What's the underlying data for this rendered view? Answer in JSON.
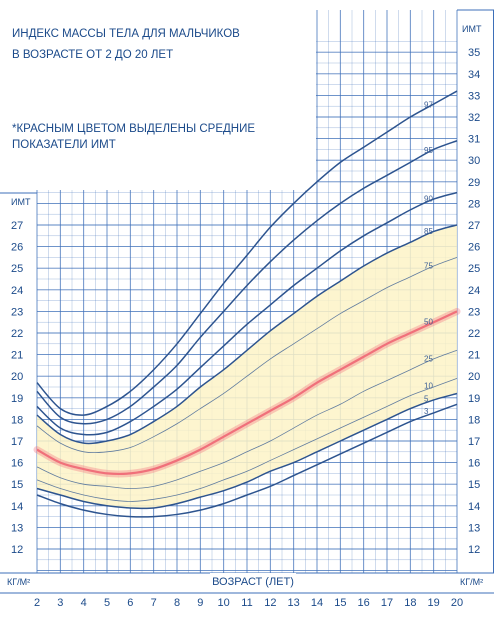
{
  "chart_data": {
    "type": "line",
    "title_line1": "ИНДЕКС МАССЫ ТЕЛА ДЛЯ МАЛЬЧИКОВ",
    "title_line2": "В ВОЗРАСТЕ ОТ 2 ДО 20 ЛЕТ",
    "note_line1": "*КРАСНЫМ ЦВЕТОМ ВЫДЕЛЕНЫ СРЕДНИЕ",
    "note_line2": "ПОКАЗАТЕЛИ ИМТ",
    "xlabel": "ВОЗРАСТ (ЛЕТ)",
    "ylabel_top_left": "ИМТ",
    "ylabel_top_right": "ИМТ",
    "ylabel_bottom_left": "КГ/М²",
    "ylabel_bottom_right": "КГ/М²",
    "xlim": [
      2,
      20
    ],
    "x_ticks": [
      2,
      3,
      4,
      5,
      6,
      7,
      8,
      9,
      10,
      11,
      12,
      13,
      14,
      15,
      16,
      17,
      18,
      19,
      20
    ],
    "ylim_left": [
      12,
      27
    ],
    "ylim_right": [
      12,
      35
    ],
    "y_ticks_left": [
      12,
      13,
      14,
      15,
      16,
      17,
      18,
      19,
      20,
      21,
      22,
      23,
      24,
      25,
      26,
      27
    ],
    "y_ticks_right": [
      12,
      13,
      14,
      15,
      16,
      17,
      18,
      19,
      20,
      21,
      22,
      23,
      24,
      25,
      26,
      27,
      28,
      29,
      30,
      31,
      32,
      33,
      34,
      35
    ],
    "grid": true,
    "shaded_band": [
      "5",
      "85"
    ],
    "highlighted_series": "50",
    "x": [
      2,
      3,
      4,
      5,
      6,
      7,
      8,
      9,
      10,
      11,
      12,
      13,
      14,
      15,
      16,
      17,
      18,
      19,
      20
    ],
    "series": [
      {
        "name": "97",
        "values": [
          19.7,
          18.5,
          18.2,
          18.6,
          19.3,
          20.3,
          21.5,
          22.9,
          24.3,
          25.6,
          26.9,
          28.0,
          29.0,
          29.9,
          30.6,
          31.3,
          32.0,
          32.6,
          33.2
        ]
      },
      {
        "name": "95",
        "values": [
          19.3,
          18.1,
          17.8,
          18.0,
          18.6,
          19.5,
          20.5,
          21.8,
          23.0,
          24.2,
          25.3,
          26.3,
          27.2,
          28.0,
          28.7,
          29.3,
          29.9,
          30.5,
          30.9
        ]
      },
      {
        "name": "90",
        "values": [
          18.6,
          17.6,
          17.3,
          17.4,
          17.9,
          18.6,
          19.4,
          20.4,
          21.4,
          22.4,
          23.3,
          24.2,
          25.0,
          25.8,
          26.5,
          27.1,
          27.7,
          28.2,
          28.5
        ]
      },
      {
        "name": "85",
        "values": [
          18.2,
          17.3,
          16.9,
          17.0,
          17.3,
          17.9,
          18.6,
          19.5,
          20.3,
          21.2,
          22.1,
          22.9,
          23.7,
          24.4,
          25.1,
          25.7,
          26.2,
          26.7,
          27.0
        ]
      },
      {
        "name": "75",
        "values": [
          17.7,
          16.9,
          16.5,
          16.5,
          16.7,
          17.2,
          17.8,
          18.5,
          19.2,
          20.0,
          20.8,
          21.5,
          22.2,
          22.9,
          23.5,
          24.1,
          24.6,
          25.1,
          25.5
        ]
      },
      {
        "name": "50",
        "values": [
          16.6,
          16.0,
          15.7,
          15.5,
          15.5,
          15.7,
          16.1,
          16.6,
          17.2,
          17.8,
          18.4,
          19.0,
          19.7,
          20.3,
          20.9,
          21.5,
          22.0,
          22.5,
          23.0
        ]
      },
      {
        "name": "25",
        "values": [
          15.8,
          15.3,
          15.0,
          14.9,
          14.8,
          14.9,
          15.2,
          15.6,
          16.0,
          16.5,
          17.0,
          17.6,
          18.2,
          18.7,
          19.3,
          19.8,
          20.3,
          20.8,
          21.2
        ]
      },
      {
        "name": "10",
        "values": [
          15.2,
          14.8,
          14.5,
          14.3,
          14.2,
          14.3,
          14.5,
          14.8,
          15.2,
          15.6,
          16.1,
          16.6,
          17.1,
          17.6,
          18.1,
          18.6,
          19.1,
          19.5,
          19.9
        ]
      },
      {
        "name": "5",
        "values": [
          14.8,
          14.5,
          14.2,
          14.0,
          13.9,
          13.9,
          14.1,
          14.4,
          14.7,
          15.1,
          15.6,
          16.0,
          16.5,
          17.0,
          17.5,
          18.0,
          18.5,
          18.9,
          19.2
        ]
      },
      {
        "name": "3",
        "values": [
          14.5,
          14.1,
          13.8,
          13.6,
          13.5,
          13.5,
          13.6,
          13.8,
          14.1,
          14.5,
          14.9,
          15.4,
          15.9,
          16.4,
          16.9,
          17.4,
          17.9,
          18.3,
          18.7
        ]
      }
    ],
    "colors": {
      "grid": "#3d6fb8",
      "axis_text": "#1b4a8a",
      "percentile_line": "#2d548f",
      "median_line": "#f0707a",
      "band_fill": "#fdf3c7"
    }
  }
}
